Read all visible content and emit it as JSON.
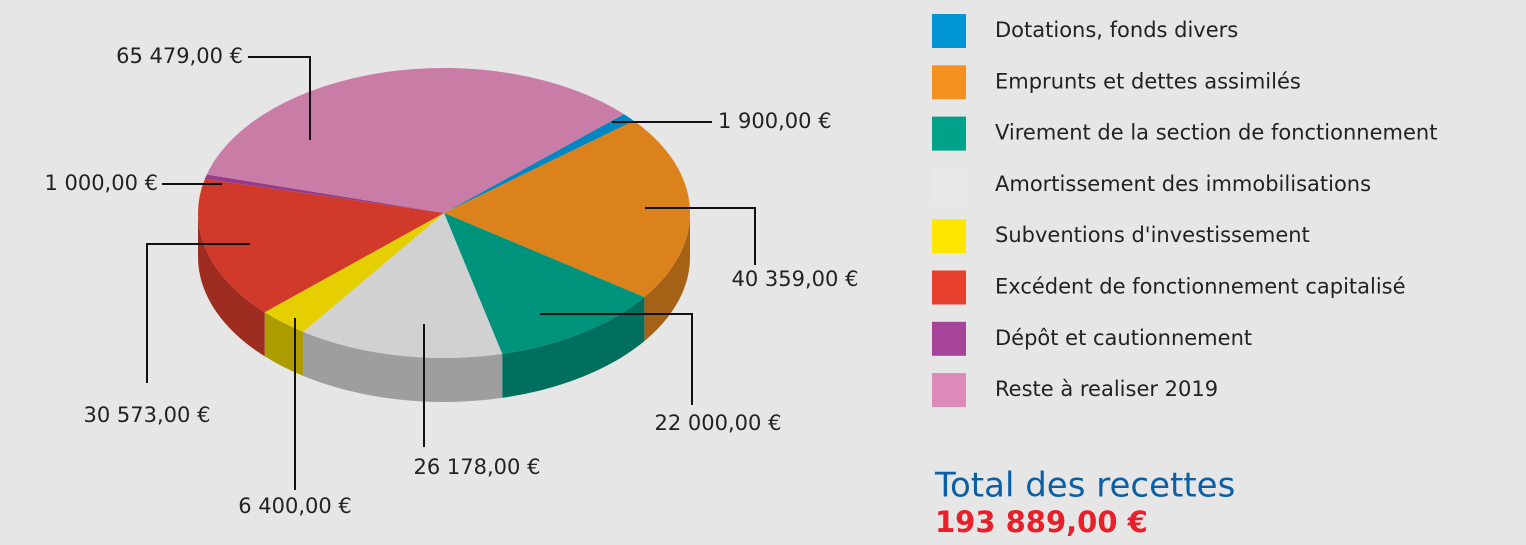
{
  "chart_data": {
    "type": "pie",
    "categories": [
      "Dotations, fonds divers",
      "Emprunts et dettes assimilés",
      "Virement de la section de fonctionnement",
      "Amortissement des immobilisations",
      "Subventions d'investissement",
      "Excédent de fonctionnement capitalisé",
      "Dépôt et cautionnement",
      "Reste à realiser 2019"
    ],
    "values": [
      1900,
      40359,
      22000,
      26178,
      6400,
      30573,
      1000,
      65479
    ],
    "value_labels": [
      "1 900,00 €",
      "40 359,00 €",
      "22 000,00 €",
      "26 178,00 €",
      "6 400,00 €",
      "30 573,00 €",
      "1 000,00 €",
      "65 479,00 €"
    ],
    "colors": [
      "#0096d6",
      "#f39020",
      "#00a38a",
      "#e8e8e8",
      "#ffe600",
      "#e8402f",
      "#a6449a",
      "#de8ab8"
    ],
    "legend": "right"
  },
  "total": {
    "title": "Total des recettes",
    "value_label": "193 889,00 €"
  }
}
